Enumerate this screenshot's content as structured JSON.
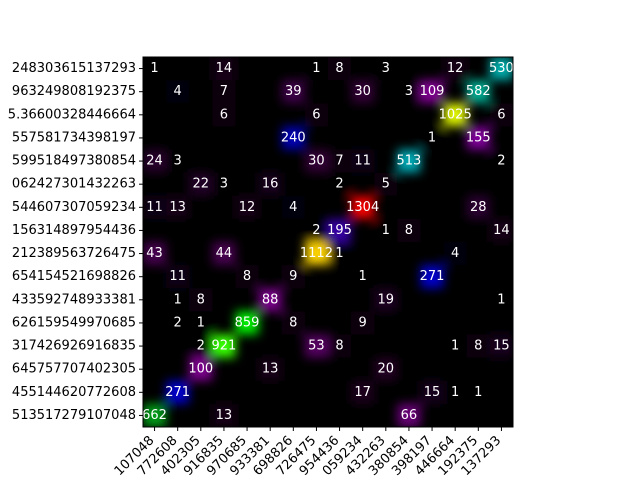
{
  "chart_data": {
    "type": "heatmap",
    "colormap": "nipy_spectral",
    "x_labels": [
      "107048",
      "772608",
      "402305",
      "916835",
      "970685",
      "933381",
      "698826",
      "726475",
      "954436",
      "059234",
      "432263",
      "380854",
      "398197",
      "446664",
      "192375",
      "137293"
    ],
    "y_labels": [
      "248303615137293",
      "963249808192375",
      "5.36600328446664",
      "557581734398197",
      "599518497380854",
      "062427301432263",
      "544607307059234",
      "156314897954436",
      "212389563726475",
      "654154521698826",
      "433592748933381",
      "626159549970685",
      "317426926916835",
      "645757707402305",
      "455144620772608",
      "513517279107048"
    ],
    "values": [
      [
        1,
        null,
        null,
        14,
        null,
        null,
        null,
        1,
        8,
        null,
        3,
        null,
        null,
        12,
        null,
        530
      ],
      [
        null,
        4,
        null,
        7,
        null,
        null,
        39,
        null,
        null,
        30,
        null,
        3,
        109,
        null,
        582,
        null
      ],
      [
        null,
        null,
        null,
        6,
        null,
        null,
        null,
        6,
        null,
        null,
        null,
        null,
        null,
        1025,
        null,
        6
      ],
      [
        null,
        null,
        null,
        null,
        null,
        null,
        240,
        null,
        null,
        null,
        null,
        null,
        1,
        null,
        155,
        null
      ],
      [
        24,
        3,
        null,
        null,
        null,
        null,
        null,
        30,
        7,
        11,
        null,
        513,
        null,
        null,
        null,
        2
      ],
      [
        null,
        null,
        22,
        3,
        null,
        16,
        null,
        null,
        2,
        null,
        5,
        null,
        null,
        null,
        null,
        null
      ],
      [
        11,
        13,
        null,
        null,
        12,
        null,
        4,
        null,
        null,
        1304,
        null,
        null,
        null,
        null,
        28,
        null
      ],
      [
        null,
        null,
        null,
        null,
        null,
        null,
        null,
        2,
        195,
        null,
        1,
        8,
        null,
        null,
        null,
        14
      ],
      [
        43,
        null,
        null,
        44,
        null,
        null,
        null,
        1112,
        1,
        null,
        null,
        null,
        null,
        4,
        null,
        null
      ],
      [
        null,
        11,
        null,
        null,
        8,
        null,
        9,
        null,
        null,
        1,
        null,
        null,
        271,
        null,
        null,
        null
      ],
      [
        null,
        1,
        8,
        null,
        null,
        88,
        null,
        null,
        null,
        null,
        19,
        null,
        null,
        null,
        null,
        1
      ],
      [
        null,
        2,
        1,
        null,
        859,
        null,
        8,
        null,
        null,
        9,
        null,
        null,
        null,
        null,
        null,
        null
      ],
      [
        null,
        null,
        2,
        921,
        null,
        null,
        null,
        53,
        8,
        null,
        null,
        null,
        null,
        1,
        8,
        15
      ],
      [
        null,
        null,
        100,
        null,
        null,
        13,
        null,
        null,
        null,
        null,
        20,
        null,
        null,
        null,
        null,
        null
      ],
      [
        null,
        271,
        null,
        null,
        null,
        null,
        null,
        null,
        null,
        17,
        null,
        null,
        15,
        1,
        1,
        null
      ],
      [
        662,
        null,
        null,
        13,
        null,
        null,
        null,
        null,
        null,
        null,
        null,
        66,
        null,
        null,
        null,
        null
      ]
    ]
  }
}
